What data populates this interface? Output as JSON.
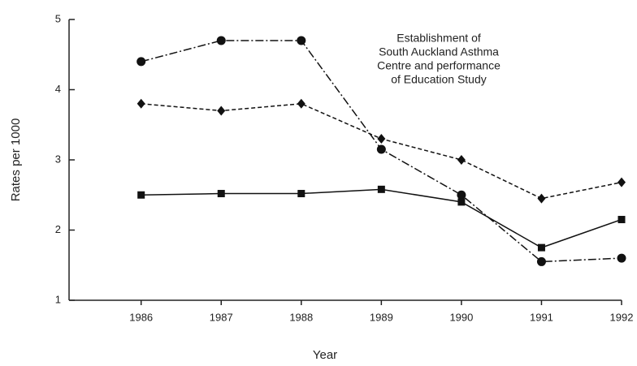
{
  "chart_data": {
    "type": "line",
    "xlabel": "Year",
    "ylabel": "Rates per 1000",
    "annotation": [
      "Establishment of",
      "South Auckland Asthma",
      "Centre and performance",
      "of Education Study"
    ],
    "x": [
      1986,
      1987,
      1988,
      1989,
      1990,
      1991,
      1992
    ],
    "series": [
      {
        "color": "#111111",
        "marker": "circle",
        "dash": "10 3 2 3",
        "values": [
          4.4,
          4.7,
          4.7,
          3.15,
          2.5,
          1.55,
          1.6
        ]
      },
      {
        "color": "#111111",
        "marker": "diamond",
        "dash": "5 3",
        "values": [
          3.8,
          3.7,
          3.8,
          3.3,
          3.0,
          2.45,
          2.68
        ]
      },
      {
        "color": "#111111",
        "marker": "square",
        "dash": "none",
        "values": [
          2.5,
          2.52,
          2.52,
          2.58,
          2.4,
          1.75,
          2.15
        ]
      }
    ],
    "xlim": [
      1985.1,
      1992
    ],
    "xticks": [
      1986,
      1987,
      1988,
      1989,
      1990,
      1991,
      1992
    ],
    "ylim": [
      1,
      5
    ],
    "yticks": [
      1,
      2,
      3,
      4,
      5
    ],
    "grid": false
  }
}
